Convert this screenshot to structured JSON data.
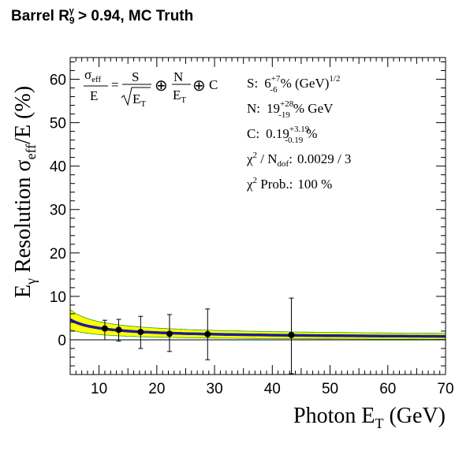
{
  "title": {
    "prefix": "Barrel R",
    "sub": "9",
    "sup": "γ",
    "suffix": " > 0.94, MC Truth"
  },
  "formula": {
    "lhs_num": "σ",
    "lhs_num_sub": "eff",
    "lhs_den": "E",
    "rhs1_num": "S",
    "rhs1_den": "E",
    "rhs1_den_sub": "T",
    "oplus": "⊕",
    "rhs2_num": "N",
    "rhs2_den": "E",
    "rhs2_den_sub": "T",
    "rhs3": "C"
  },
  "fit_results": {
    "S": {
      "label": "S:",
      "value": "6",
      "up": "+7",
      "down": "-6",
      "unit": "% (GeV)",
      "unit_sup": "1/2"
    },
    "N": {
      "label": "N:",
      "value": "19",
      "up": "+28",
      "down": "-19",
      "unit": "% GeV"
    },
    "C": {
      "label": "C:",
      "value": "0.19",
      "up": "+3.19",
      "down": "-0.19",
      "unit": "%"
    },
    "chi2": {
      "label_pre": "χ",
      "label_sup": "2",
      "label_mid": " / N",
      "label_sub": "dof",
      "label_post": ":",
      "value": "0.0029 / 3"
    },
    "prob": {
      "label_pre": "χ",
      "label_sup": "2",
      "label_post": " Prob.:",
      "value": "100 %"
    }
  },
  "chart_data": {
    "type": "scatter",
    "xlabel": "Photon E",
    "xlabel_sub": "T",
    "xlabel_unit": " (GeV)",
    "ylabel_pre": "E",
    "ylabel_pre_sub": "γ",
    "ylabel_mid": " Resolution σ",
    "ylabel_mid_sub": "eff",
    "ylabel_post": "/E (%)",
    "xlim": [
      5,
      70
    ],
    "ylim": [
      -8,
      65
    ],
    "x_ticks": [
      10,
      20,
      30,
      40,
      50,
      60,
      70
    ],
    "y_ticks": [
      0,
      10,
      20,
      30,
      40,
      50,
      60
    ],
    "zero_line": true,
    "series": [
      {
        "points": [
          {
            "x": 11.0,
            "y": 2.6,
            "err_up": 1.9,
            "err_down": 2.6
          },
          {
            "x": 13.4,
            "y": 2.3,
            "err_up": 2.4,
            "err_down": 2.6
          },
          {
            "x": 17.2,
            "y": 1.8,
            "err_up": 3.6,
            "err_down": 3.8
          },
          {
            "x": 22.2,
            "y": 1.4,
            "err_up": 4.4,
            "err_down": 4.1
          },
          {
            "x": 28.8,
            "y": 1.3,
            "err_up": 5.8,
            "err_down": 5.9
          },
          {
            "x": 43.3,
            "y": 1.1,
            "err_up": 8.5,
            "err_down": 8.9
          }
        ]
      }
    ],
    "fit_curve": {
      "S": 6,
      "N": 19,
      "C": 0.19,
      "color": "#1c1c9c"
    },
    "band_color": "#ffff00",
    "band_edge_color": "#2a9a2a"
  }
}
